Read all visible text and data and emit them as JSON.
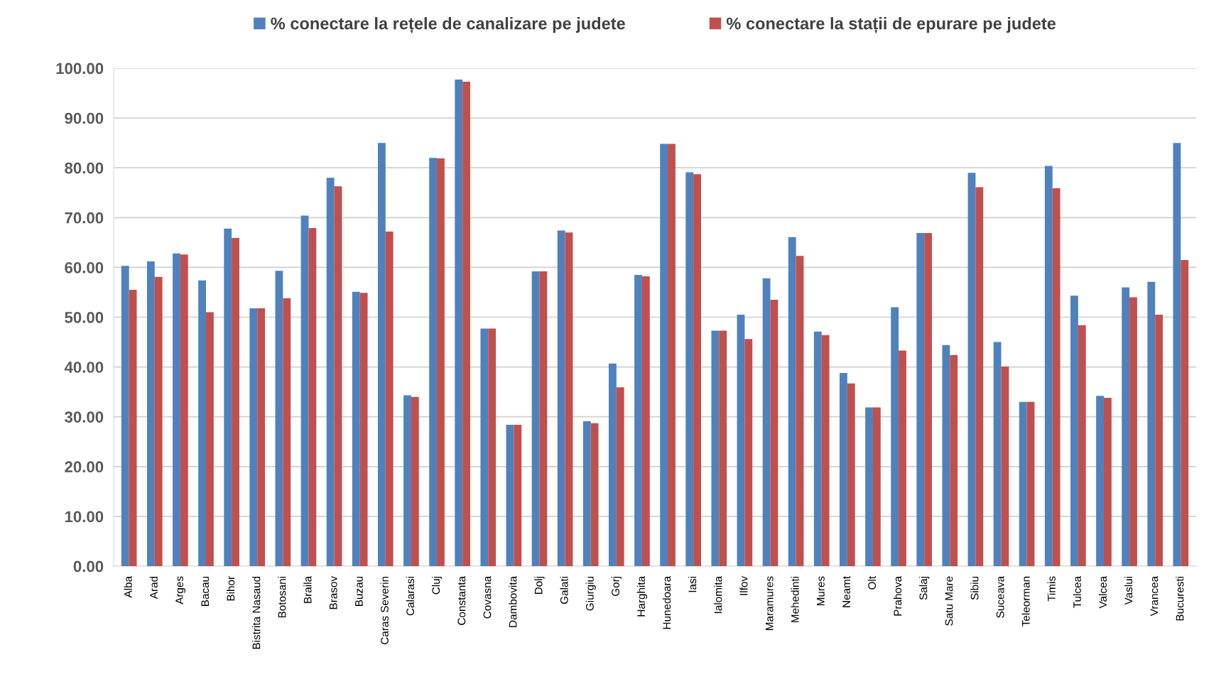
{
  "chart_data": {
    "type": "bar",
    "categories": [
      "Alba",
      "Arad",
      "Arges",
      "Bacau",
      "Bihor",
      "Bistrita Nasaud",
      "Botosani",
      "Braila",
      "Brasov",
      "Buzau",
      "Caras Severin",
      "Calarasi",
      "Cluj",
      "Constanta",
      "Covasna",
      "Dambovita",
      "Dolj",
      "Galati",
      "Giurgiu",
      "Gorj",
      "Harghita",
      "Hunedoara",
      "Iasi",
      "Ialomita",
      "Ilfov",
      "Maramures",
      "Mehedinti",
      "Mures",
      "Neamt",
      "Olt",
      "Prahova",
      "Salaj",
      "Satu Mare",
      "Sibiu",
      "Suceava",
      "Teleorman",
      "Timis",
      "Tulcea",
      "Valcea",
      "Vaslui",
      "Vrancea",
      "Bucuresti"
    ],
    "series": [
      {
        "name": "% conectare la rețele de canalizare pe judete",
        "color": "#4f81bd",
        "values": [
          60.3,
          61.2,
          62.8,
          57.4,
          67.8,
          51.8,
          59.3,
          70.4,
          78.0,
          55.1,
          85.0,
          34.3,
          82.0,
          97.7,
          47.7,
          28.4,
          59.2,
          67.4,
          29.1,
          40.7,
          58.5,
          84.8,
          79.1,
          47.3,
          50.5,
          57.8,
          66.1,
          47.1,
          38.8,
          31.9,
          52.0,
          66.9,
          44.4,
          79.0,
          45.0,
          33.0,
          80.4,
          54.3,
          34.2,
          56.0,
          57.1,
          85.0
        ]
      },
      {
        "name": "% conectare la stații de epurare pe judete",
        "color": "#c0504d",
        "values": [
          55.5,
          58.1,
          62.6,
          51.0,
          65.9,
          51.8,
          53.8,
          67.9,
          76.3,
          54.9,
          67.2,
          34.0,
          81.9,
          97.3,
          47.7,
          28.4,
          59.2,
          67.0,
          28.7,
          35.9,
          58.2,
          84.8,
          78.7,
          47.3,
          45.6,
          53.5,
          62.3,
          46.4,
          36.7,
          31.9,
          43.3,
          66.9,
          42.4,
          76.1,
          40.1,
          33.0,
          75.9,
          48.4,
          33.8,
          54.0,
          50.5,
          61.5
        ]
      }
    ],
    "ylim": [
      0,
      100
    ],
    "yticks": [
      {
        "value": 0,
        "label": "0.00"
      },
      {
        "value": 10,
        "label": "10.00"
      },
      {
        "value": 20,
        "label": "20.00"
      },
      {
        "value": 30,
        "label": "30.00"
      },
      {
        "value": 40,
        "label": "40.00"
      },
      {
        "value": 50,
        "label": "50.00"
      },
      {
        "value": 60,
        "label": "60.00"
      },
      {
        "value": 70,
        "label": "70.00"
      },
      {
        "value": 80,
        "label": "80.00"
      },
      {
        "value": 90,
        "label": "90.00"
      },
      {
        "value": 100,
        "label": "100.00"
      }
    ],
    "grid": "y",
    "legend": "top"
  }
}
